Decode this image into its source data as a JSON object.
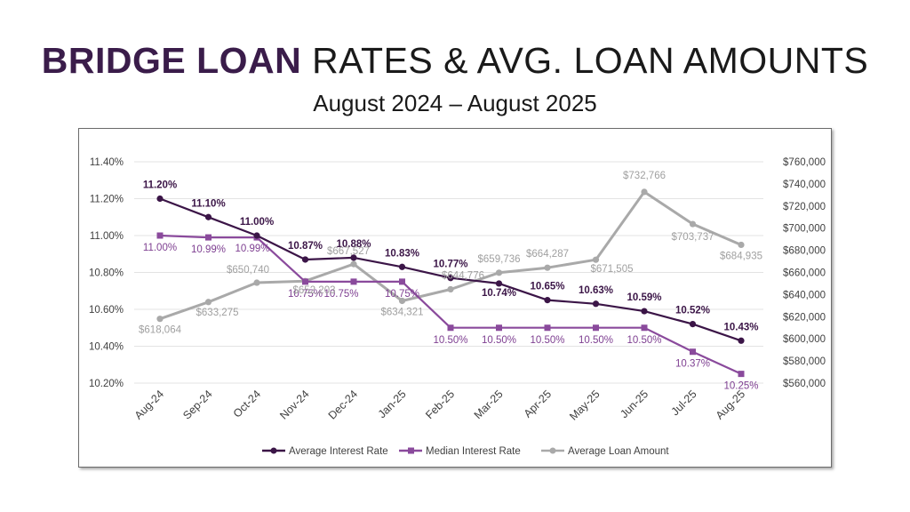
{
  "page": {
    "title_accent": "BRIDGE LOAN",
    "title_rest": " RATES & AVG. LOAN AMOUNTS",
    "subtitle": "August 2024 – August 2025"
  },
  "chart_data": {
    "type": "line",
    "categories": [
      "Aug-24",
      "Sep-24",
      "Oct-24",
      "Nov-24",
      "Dec-24",
      "Jan-25",
      "Feb-25",
      "Mar-25",
      "Apr-25",
      "May-25",
      "Jun-25",
      "Jul-25",
      "Aug-25"
    ],
    "left_axis": {
      "min": 10.2,
      "max": 11.4,
      "ticks": [
        "10.20%",
        "10.40%",
        "10.60%",
        "10.80%",
        "11.00%",
        "11.20%",
        "11.40%"
      ],
      "tick_values": [
        10.2,
        10.4,
        10.6,
        10.8,
        11.0,
        11.2,
        11.4
      ]
    },
    "right_axis": {
      "min": 560000,
      "max": 760000,
      "ticks": [
        "$560,000",
        "$580,000",
        "$600,000",
        "$620,000",
        "$640,000",
        "$660,000",
        "$680,000",
        "$700,000",
        "$720,000",
        "$740,000",
        "$760,000"
      ],
      "tick_values": [
        560000,
        580000,
        600000,
        620000,
        640000,
        660000,
        680000,
        700000,
        720000,
        740000,
        760000
      ]
    },
    "grid": true,
    "legend_position": "bottom",
    "series": [
      {
        "name": "Average Interest Rate",
        "axis": "left",
        "color": "#3b1547",
        "marker": "circle",
        "values": [
          11.2,
          11.1,
          11.0,
          10.87,
          10.88,
          10.83,
          10.77,
          10.74,
          10.65,
          10.63,
          10.59,
          10.52,
          10.43
        ],
        "labels": [
          "11.20%",
          "11.10%",
          "11.00%",
          "10.87%",
          "10.88%",
          "10.83%",
          "10.77%",
          "10.74%",
          "10.65%",
          "10.63%",
          "10.59%",
          "10.52%",
          "10.43%"
        ]
      },
      {
        "name": "Median Interest Rate",
        "axis": "left",
        "color": "#8a4a9c",
        "marker": "square",
        "values": [
          11.0,
          10.99,
          10.99,
          10.75,
          10.75,
          10.75,
          10.5,
          10.5,
          10.5,
          10.5,
          10.5,
          10.37,
          10.25
        ],
        "labels": [
          "11.00%",
          "10.99%",
          "10.99%",
          "10.75%",
          "10.75%",
          "10.75%",
          "10.50%",
          "10.50%",
          "10.50%",
          "10.50%",
          "10.50%",
          "10.37%",
          "10.25%"
        ]
      },
      {
        "name": "Average Loan Amount",
        "axis": "right",
        "color": "#a9a9a9",
        "marker": "circle",
        "values": [
          618064,
          633275,
          650740,
          652203,
          667527,
          634321,
          644776,
          659736,
          664287,
          671505,
          732766,
          703737,
          684935
        ],
        "labels": [
          "$618,064",
          "$633,275",
          "$650,740",
          "$652,203",
          "$667,527",
          "$634,321",
          "$644,776",
          "$659,736",
          "$664,287",
          "$671,505",
          "$732,766",
          "$703,737",
          "$684,935"
        ]
      }
    ]
  }
}
